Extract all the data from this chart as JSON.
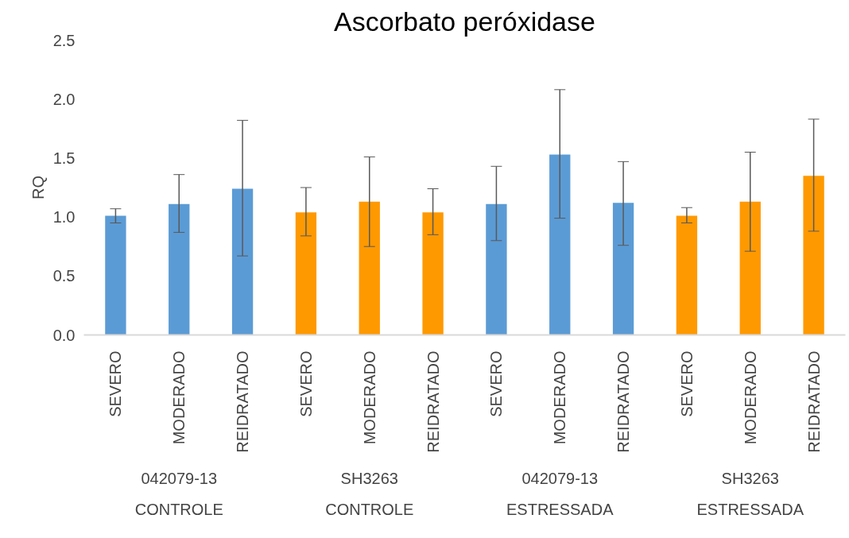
{
  "chart_data": {
    "type": "bar",
    "title": "Ascorbato peróxidase",
    "ylabel": "RQ",
    "categories": [
      "SEVERO",
      "MODERADO",
      "REIDRATADO",
      "SEVERO",
      "MODERADO",
      "REIDRATADO",
      "SEVERO",
      "MODERADO",
      "REIDRATADO",
      "SEVERO",
      "MODERADO",
      "REIDRATADO"
    ],
    "values": [
      1.01,
      1.11,
      1.24,
      1.04,
      1.13,
      1.04,
      1.11,
      1.53,
      1.12,
      1.01,
      1.13,
      1.35
    ],
    "errors": [
      [
        0.95,
        1.07
      ],
      [
        0.87,
        1.36
      ],
      [
        0.67,
        1.82
      ],
      [
        0.84,
        1.25
      ],
      [
        0.75,
        1.51
      ],
      [
        0.85,
        1.24
      ],
      [
        0.8,
        1.43
      ],
      [
        0.99,
        2.08
      ],
      [
        0.76,
        1.47
      ],
      [
        0.95,
        1.08
      ],
      [
        0.71,
        1.55
      ],
      [
        0.88,
        1.83
      ]
    ],
    "colors": [
      "#5b9bd5",
      "#5b9bd5",
      "#5b9bd5",
      "#ff9900",
      "#ff9900",
      "#ff9900",
      "#5b9bd5",
      "#5b9bd5",
      "#5b9bd5",
      "#ff9900",
      "#ff9900",
      "#ff9900"
    ],
    "ylim": [
      0,
      2.5
    ],
    "yticks": [
      {
        "value": 0,
        "label": "0.0"
      },
      {
        "value": 0.5,
        "label": "0.5"
      },
      {
        "value": 1,
        "label": "1.0"
      },
      {
        "value": 1.5,
        "label": "1.5"
      },
      {
        "value": 2,
        "label": "2.0"
      },
      {
        "value": 2.5,
        "label": "2.5"
      }
    ],
    "annotations": [
      "042079-13",
      "SH3263",
      "042079-13",
      "SH3263",
      "CONTROLE",
      "CONTROLE",
      "ESTRESSADA",
      "ESTRESSADA"
    ],
    "grid": false
  }
}
